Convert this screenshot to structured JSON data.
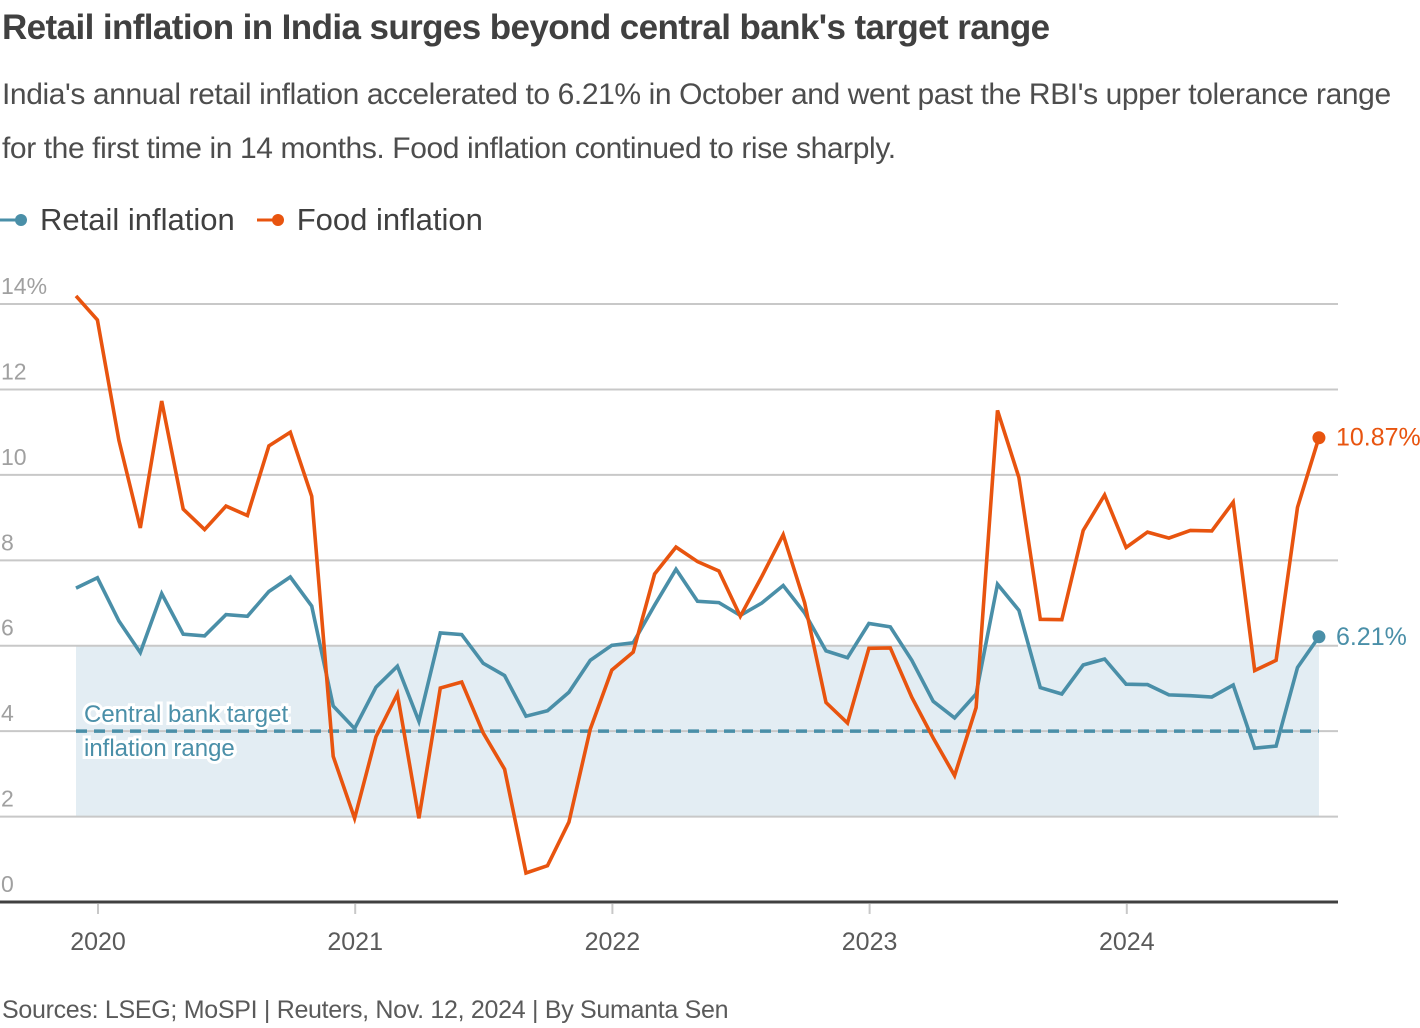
{
  "header": {
    "title": "Retail inflation in India surges beyond central bank's target range",
    "subtitle": "India's annual retail inflation accelerated to 6.21% in October and went past the RBI's upper tolerance range for the first time in 14 months. Food inflation continued to rise sharply."
  },
  "legend": [
    {
      "label": "Retail inflation",
      "color": "#4a8fa8",
      "icon": "line-dot-icon"
    },
    {
      "label": "Food inflation",
      "color": "#e8540f",
      "icon": "line-dot-icon"
    }
  ],
  "footer": {
    "source": "Sources: LSEG; MoSPI | Reuters, Nov. 12, 2024 | By Sumanta Sen"
  },
  "colors": {
    "retail": "#4a8fa8",
    "food": "#e8540f",
    "band": "#e3edf3",
    "grid": "#c8c8c8",
    "axis": "#404040"
  },
  "chart_data": {
    "type": "line",
    "title": "Retail inflation in India surges beyond central bank's target range",
    "xlabel": "",
    "ylabel": "",
    "ylim": [
      0,
      14
    ],
    "yticks": [
      0,
      2,
      4,
      6,
      8,
      10,
      12,
      14
    ],
    "ytick_labels": [
      "0",
      "2",
      "4",
      "6",
      "8",
      "10",
      "12",
      "14%"
    ],
    "xticks": [
      "2020",
      "2021",
      "2022",
      "2023",
      "2024"
    ],
    "x_start": "Dec 2019",
    "x_end": "Oct 2024",
    "x_frequency": "monthly",
    "grid": true,
    "legend_position": "top-left",
    "target_band": {
      "low": 2,
      "high": 6,
      "midline": 4,
      "label_line1": "Central bank target",
      "label_line2": "inflation range"
    },
    "series": [
      {
        "name": "Retail inflation",
        "color": "#4a8fa8",
        "end_label": "6.21%",
        "values": [
          7.35,
          7.59,
          6.58,
          5.84,
          7.22,
          6.27,
          6.23,
          6.73,
          6.69,
          7.27,
          7.61,
          6.93,
          4.59,
          4.06,
          5.03,
          5.52,
          4.23,
          6.3,
          6.26,
          5.59,
          5.3,
          4.35,
          4.48,
          4.91,
          5.66,
          6.01,
          6.07,
          6.95,
          7.79,
          7.04,
          7.01,
          6.71,
          7.0,
          7.41,
          6.77,
          5.88,
          5.72,
          6.52,
          6.44,
          5.66,
          4.7,
          4.31,
          4.87,
          7.44,
          6.83,
          5.02,
          4.87,
          5.55,
          5.69,
          5.1,
          5.09,
          4.85,
          4.83,
          4.8,
          5.08,
          3.6,
          3.65,
          5.49,
          6.21
        ]
      },
      {
        "name": "Food inflation",
        "color": "#e8540f",
        "end_label": "10.87%",
        "values": [
          14.19,
          13.63,
          10.81,
          8.76,
          11.73,
          9.2,
          8.72,
          9.27,
          9.05,
          10.68,
          11.0,
          9.5,
          3.41,
          1.96,
          3.87,
          4.87,
          1.96,
          5.01,
          5.15,
          3.96,
          3.11,
          0.68,
          0.85,
          1.87,
          4.05,
          5.43,
          5.85,
          7.68,
          8.31,
          7.97,
          7.75,
          6.69,
          7.62,
          8.6,
          7.01,
          4.67,
          4.19,
          5.94,
          5.95,
          4.79,
          3.84,
          2.96,
          4.55,
          11.51,
          9.94,
          6.62,
          6.61,
          8.7,
          9.53,
          8.3,
          8.66,
          8.52,
          8.7,
          8.69,
          9.36,
          5.42,
          5.66,
          9.24,
          10.87
        ]
      }
    ]
  }
}
